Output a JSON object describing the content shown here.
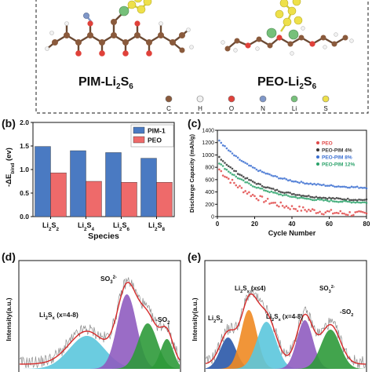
{
  "panel_a": {
    "molecule_left_label": "PIM-Li",
    "molecule_left_sub1": "2",
    "molecule_left_s": "S",
    "molecule_left_sub2": "6",
    "molecule_right_label": "PEO-Li",
    "molecule_right_sub1": "2",
    "molecule_right_s": "S",
    "molecule_right_sub2": "6",
    "atom_legend": [
      {
        "symbol": "C",
        "color": "#8a5a3c"
      },
      {
        "symbol": "H",
        "color": "#f0f0f0"
      },
      {
        "symbol": "O",
        "color": "#e0413a"
      },
      {
        "symbol": "N",
        "color": "#7f97c8"
      },
      {
        "symbol": "Li",
        "color": "#76c07a"
      },
      {
        "symbol": "S",
        "color": "#eee04a"
      }
    ]
  },
  "panel_b": {
    "tag": "(b)",
    "xlabel": "Species",
    "legend": [
      "PIM-1",
      "PEO"
    ]
  },
  "panel_c": {
    "tag": "(c)",
    "xlabel": "Cycle Number",
    "ylabel": "Discharge Capacity (mAh/g)",
    "legend": [
      "PEO",
      "PEO-PIM 4%",
      "PEO-PIM 8%",
      "PEO-PIM 12%"
    ]
  },
  "panel_d": {
    "tag": "(d)",
    "ylabel": "Intensity(a.u.)",
    "annotations": [
      "Li",
      "2",
      "S",
      "x",
      " (x=4-8)",
      "SO",
      "3",
      "2-",
      "-SO",
      "2"
    ]
  },
  "panel_e": {
    "tag": "(e)",
    "ylabel": "Intensity(a.u.)",
    "ann_li2s2": "Li2S2",
    "ann_li2sx_le4": "Li2Sx (x≤4)",
    "ann_li2sx_48": "Li2Sx (x=4-8)",
    "ann_so3": "SO3 2-",
    "ann_so2": "-SO2"
  },
  "chart_data": [
    {
      "type": "bar",
      "title": "",
      "xlabel": "Species",
      "ylabel": "-ΔE_bind (ev)",
      "categories": [
        "Li2S2",
        "Li2S4",
        "Li2S6",
        "Li2S8"
      ],
      "series": [
        {
          "name": "PIM-1",
          "values": [
            1.49,
            1.4,
            1.36,
            1.24
          ],
          "color": "#4a7ac2"
        },
        {
          "name": "PEO",
          "values": [
            0.93,
            0.75,
            0.73,
            0.73
          ],
          "color": "#ee6a6a"
        }
      ],
      "ylim": [
        0.0,
        2.0
      ],
      "yticks": [
        "0.0",
        "0.5",
        "1.0",
        "1.5",
        "2.0"
      ],
      "legend_position": "top-right"
    },
    {
      "type": "scatter",
      "title": "",
      "xlabel": "Cycle Number",
      "ylabel": "Discharge Capacity (mAh/g)",
      "xlim": [
        0,
        80
      ],
      "ylim": [
        0,
        1400
      ],
      "xticks": [
        0,
        20,
        40,
        60,
        80
      ],
      "yticks": [
        0,
        200,
        400,
        600,
        800,
        1000,
        1200,
        1400
      ],
      "legend_position": "top-right",
      "series": [
        {
          "name": "PEO",
          "color": "#e04848",
          "start": 800,
          "end": 40
        },
        {
          "name": "PEO-PIM 4%",
          "color": "#333333",
          "start": 1000,
          "end": 270
        },
        {
          "name": "PEO-PIM 8%",
          "color": "#3b6fd1",
          "start": 1270,
          "end": 470
        },
        {
          "name": "PEO-PIM 12%",
          "color": "#2aa26a",
          "start": 900,
          "end": 230
        }
      ]
    },
    {
      "type": "area",
      "title": "",
      "ylabel": "Intensity(a.u.)",
      "components": [
        {
          "name": "Li2Sx (x=4-8)",
          "color": "#5bc6dd"
        },
        {
          "name": "SO3 2-",
          "color": "#8f5cc0"
        },
        {
          "name": "-SO2",
          "color": "#2e9a3a"
        }
      ]
    },
    {
      "type": "area",
      "title": "",
      "ylabel": "Intensity(a.u.)",
      "components": [
        {
          "name": "Li2S2",
          "color": "#2a58a8"
        },
        {
          "name": "Li2Sx (x≤4)",
          "color": "#f08a22"
        },
        {
          "name": "Li2Sx (x=4-8)",
          "color": "#5bc6dd"
        },
        {
          "name": "SO3 2-",
          "color": "#8f5cc0"
        },
        {
          "name": "-SO2",
          "color": "#2e9a3a"
        }
      ]
    }
  ]
}
